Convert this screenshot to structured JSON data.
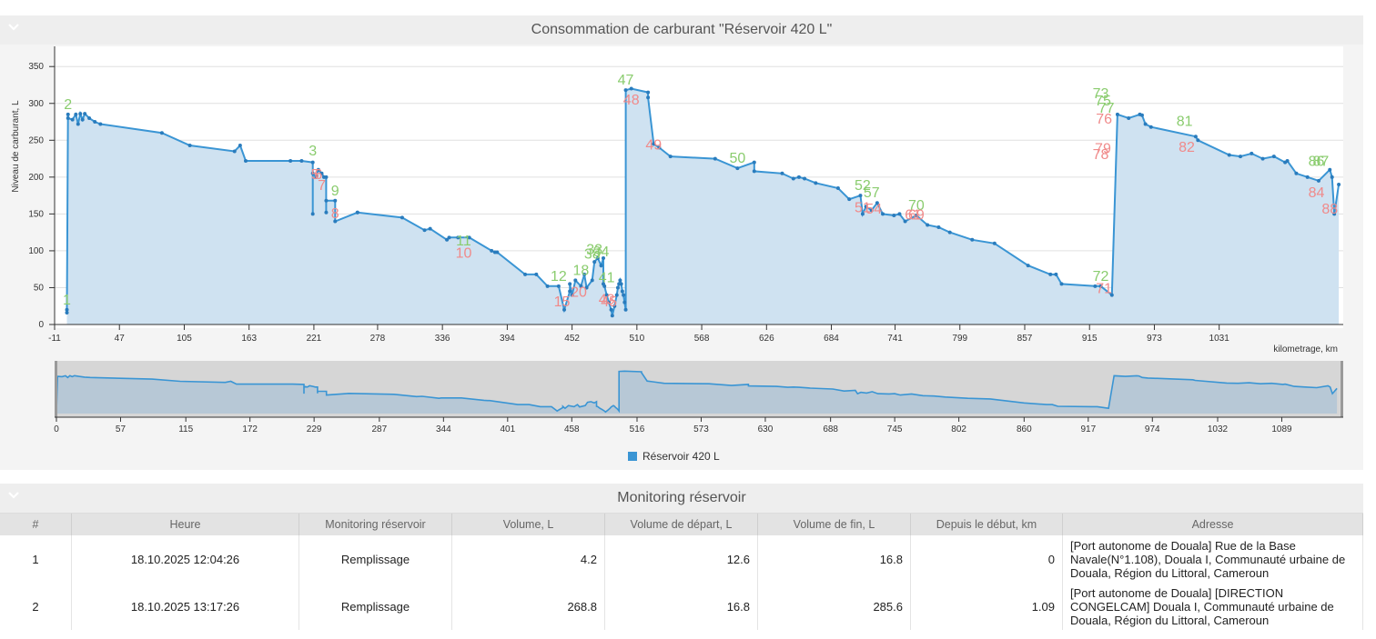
{
  "chart_panel": {
    "title": "Consommation de carburant \"Réservoir 420 L\"",
    "legend": "Réservoir 420 L"
  },
  "chart_data": {
    "type": "area",
    "title": "Consommation de carburant \"Réservoir 420 L\"",
    "ylabel": "Niveau de carburant, L",
    "xlabel": "kilometrage, km",
    "ylim": [
      0,
      370
    ],
    "xlim": [
      -11,
      1142
    ],
    "y_ticks": [
      0,
      50,
      100,
      150,
      200,
      250,
      300,
      350
    ],
    "x_ticks": [
      "-11",
      "47",
      "105",
      "163",
      "221",
      "278",
      "336",
      "394",
      "452",
      "510",
      "568",
      "626",
      "684",
      "741",
      "799",
      "857",
      "915",
      "973",
      "1031"
    ],
    "navigator_x_ticks": [
      "0",
      "57",
      "115",
      "172",
      "229",
      "287",
      "344",
      "401",
      "458",
      "516",
      "573",
      "630",
      "688",
      "745",
      "802",
      "860",
      "917",
      "974",
      "1032",
      "1089"
    ],
    "series": [
      {
        "name": "Réservoir 420 L",
        "color": "#3a95d4",
        "x": [
          0,
          0,
          1,
          1,
          5,
          8,
          10,
          12,
          14,
          16,
          20,
          25,
          30,
          85,
          110,
          150,
          155,
          160,
          200,
          210,
          220,
          220,
          220,
          223,
          225,
          228,
          230,
          232,
          232,
          232,
          240,
          240,
          260,
          260,
          300,
          320,
          325,
          340,
          342,
          350,
          360,
          380,
          383,
          385,
          410,
          420,
          430,
          440,
          445,
          450,
          450,
          452,
          455,
          460,
          463,
          465,
          470,
          472,
          475,
          478,
          480,
          480,
          481,
          483,
          485,
          487,
          488,
          490,
          492,
          493,
          494,
          495,
          496,
          497,
          498,
          499,
          500,
          500,
          505,
          520,
          520,
          525,
          530,
          540,
          580,
          600,
          615,
          615,
          640,
          650,
          655,
          660,
          670,
          690,
          700,
          710,
          712,
          715,
          720,
          725,
          730,
          740,
          745,
          750,
          760,
          770,
          780,
          790,
          810,
          830,
          860,
          880,
          885,
          890,
          920,
          925,
          935,
          940,
          950,
          960,
          962,
          965,
          970,
          1010,
          1012,
          1040,
          1050,
          1060,
          1070,
          1080,
          1090,
          1092,
          1100,
          1110,
          1120,
          1130,
          1132,
          1134,
          1138
        ],
        "values": [
          20,
          16,
          285,
          280,
          278,
          285,
          272,
          286,
          278,
          286,
          280,
          275,
          272,
          260,
          243,
          235,
          243,
          222,
          222,
          222,
          220,
          150,
          205,
          200,
          210,
          205,
          200,
          200,
          152,
          168,
          168,
          140,
          152,
          152,
          145,
          128,
          130,
          115,
          118,
          118,
          118,
          100,
          98,
          98,
          68,
          68,
          52,
          52,
          20,
          45,
          55,
          40,
          60,
          52,
          68,
          50,
          60,
          85,
          90,
          80,
          90,
          55,
          52,
          40,
          30,
          20,
          12,
          25,
          40,
          50,
          55,
          60,
          55,
          45,
          40,
          30,
          20,
          318,
          320,
          315,
          308,
          245,
          240,
          228,
          225,
          212,
          220,
          208,
          205,
          198,
          200,
          198,
          192,
          185,
          170,
          175,
          150,
          160,
          155,
          165,
          150,
          148,
          150,
          140,
          148,
          135,
          132,
          125,
          115,
          110,
          80,
          68,
          68,
          55,
          52,
          52,
          40,
          285,
          280,
          285,
          284,
          272,
          268,
          255,
          250,
          230,
          228,
          232,
          225,
          228,
          220,
          222,
          205,
          200,
          195,
          210,
          200,
          150,
          190
        ]
      }
    ],
    "markers_green": [
      {
        "label": "1",
        "x": 0,
        "y": 20
      },
      {
        "label": "2",
        "x": 1,
        "y": 285
      },
      {
        "label": "3",
        "x": 220,
        "y": 222
      },
      {
        "label": "9",
        "x": 240,
        "y": 168
      },
      {
        "label": "11",
        "x": 355,
        "y": 100
      },
      {
        "label": "12",
        "x": 440,
        "y": 52
      },
      {
        "label": "18",
        "x": 460,
        "y": 60
      },
      {
        "label": "33",
        "x": 472,
        "y": 88
      },
      {
        "label": "34",
        "x": 478,
        "y": 85
      },
      {
        "label": "38",
        "x": 470,
        "y": 82
      },
      {
        "label": "41",
        "x": 483,
        "y": 50
      },
      {
        "label": "47",
        "x": 500,
        "y": 318
      },
      {
        "label": "50",
        "x": 600,
        "y": 212
      },
      {
        "label": "52",
        "x": 712,
        "y": 175
      },
      {
        "label": "57",
        "x": 720,
        "y": 165
      },
      {
        "label": "70",
        "x": 760,
        "y": 148
      },
      {
        "label": "72",
        "x": 925,
        "y": 52
      },
      {
        "label": "73",
        "x": 925,
        "y": 300
      },
      {
        "label": "75",
        "x": 927,
        "y": 290
      },
      {
        "label": "77",
        "x": 930,
        "y": 280
      },
      {
        "label": "81",
        "x": 1000,
        "y": 262
      },
      {
        "label": "86",
        "x": 1118,
        "y": 208
      },
      {
        "label": "87",
        "x": 1122,
        "y": 208
      }
    ],
    "markers_red": [
      {
        "label": "5",
        "x": 222,
        "y": 205
      },
      {
        "label": "6",
        "x": 225,
        "y": 205
      },
      {
        "label": "7",
        "x": 228,
        "y": 190
      },
      {
        "label": "8",
        "x": 240,
        "y": 152
      },
      {
        "label": "10",
        "x": 355,
        "y": 98
      },
      {
        "label": "15",
        "x": 443,
        "y": 32
      },
      {
        "label": "20",
        "x": 458,
        "y": 45
      },
      {
        "label": "43",
        "x": 483,
        "y": 35
      },
      {
        "label": "45",
        "x": 485,
        "y": 32
      },
      {
        "label": "48",
        "x": 505,
        "y": 306
      },
      {
        "label": "49",
        "x": 525,
        "y": 245
      },
      {
        "label": "51",
        "x": 712,
        "y": 160
      },
      {
        "label": "54",
        "x": 722,
        "y": 158
      },
      {
        "label": "61",
        "x": 757,
        "y": 150
      },
      {
        "label": "69",
        "x": 760,
        "y": 150
      },
      {
        "label": "71",
        "x": 928,
        "y": 50
      },
      {
        "label": "76",
        "x": 928,
        "y": 280
      },
      {
        "label": "78",
        "x": 925,
        "y": 232
      },
      {
        "label": "79",
        "x": 927,
        "y": 240
      },
      {
        "label": "82",
        "x": 1002,
        "y": 242
      },
      {
        "label": "84",
        "x": 1118,
        "y": 180
      },
      {
        "label": "88",
        "x": 1130,
        "y": 158
      }
    ]
  },
  "table_panel": {
    "title": "Monitoring réservoir",
    "columns": [
      "#",
      "Heure",
      "Monitoring réservoir",
      "Volume, L",
      "Volume de départ, L",
      "Volume de fin, L",
      "Depuis le début, km",
      "Adresse"
    ],
    "rows": [
      {
        "num": "1",
        "time": "18.10.2025 12:04:26",
        "type": "Remplissage",
        "volume": "4.2",
        "start": "12.6",
        "end": "16.8",
        "km": "0",
        "address": "[Port autonome de Douala] Rue de la Base Navale(N°1.108), Douala I, Communauté urbaine de Douala, Région du Littoral, Cameroun"
      },
      {
        "num": "2",
        "time": "18.10.2025 13:17:26",
        "type": "Remplissage",
        "volume": "268.8",
        "start": "16.8",
        "end": "285.6",
        "km": "1.09",
        "address": "[Port autonome de Douala] [DIRECTION CONGELCAM] Douala I, Communauté urbaine de Douala, Région du Littoral, Cameroun"
      }
    ]
  }
}
